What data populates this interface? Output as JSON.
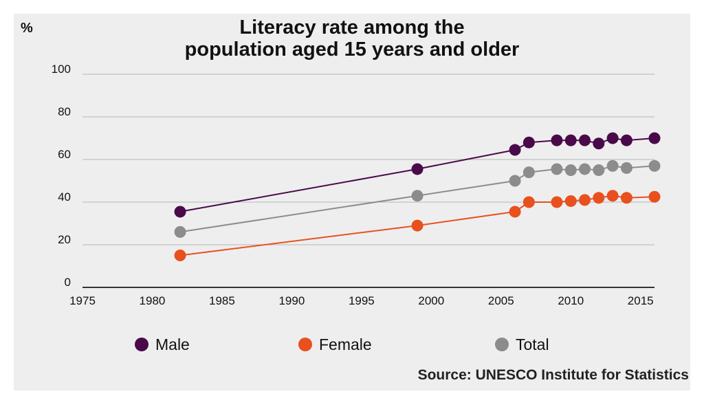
{
  "chart_data": {
    "type": "line",
    "title_lines": [
      "Literacy rate among the",
      "population aged 15 years and older"
    ],
    "unit_label": "%",
    "xlim": [
      1975,
      2016
    ],
    "ylim": [
      0,
      100
    ],
    "x_ticks": [
      1975,
      1980,
      1985,
      1990,
      1995,
      2000,
      2005,
      2010,
      2015
    ],
    "y_ticks": [
      0,
      20,
      40,
      60,
      80,
      100
    ],
    "x": [
      1982,
      1999,
      2006,
      2007,
      2009,
      2010,
      2011,
      2012,
      2013,
      2014,
      2016
    ],
    "series": [
      {
        "name": "Male",
        "color": "#4a0a4a",
        "values": [
          35.5,
          55.5,
          64.5,
          68,
          69,
          69,
          69,
          67.5,
          70,
          69,
          70
        ]
      },
      {
        "name": "Female",
        "color": "#e8501e",
        "values": [
          15,
          29,
          35.5,
          40,
          40,
          40.5,
          41,
          42,
          43,
          42,
          42.5
        ]
      },
      {
        "name": "Total",
        "color": "#8c8c8c",
        "values": [
          26,
          43,
          50,
          54,
          55.5,
          55,
          55.5,
          55,
          57,
          56,
          57
        ]
      }
    ],
    "grid": true,
    "legend_position": "bottom",
    "source": "Source: UNESCO Institute for Statistics"
  }
}
